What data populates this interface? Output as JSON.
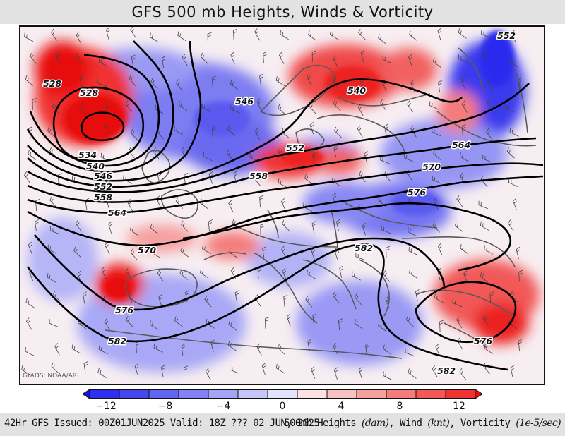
{
  "title": "GFS 500 mb Heights, Winds & Vorticity",
  "credit": "GrADS: NOAA/ARL",
  "colorbar": {
    "tick_labels": [
      "−12",
      "−8",
      "−4",
      "0",
      "4",
      "8",
      "12"
    ],
    "colors": [
      "#1414e0",
      "#2f2ff0",
      "#4646f0",
      "#6464f2",
      "#8282f4",
      "#a4a4f6",
      "#c6c6f8",
      "#e2e2fb",
      "#fbe2e2",
      "#f8c2c2",
      "#f6a0a0",
      "#f47c7c",
      "#f25858",
      "#f03434",
      "#e81010"
    ]
  },
  "contour_labels": [
    "528",
    "528",
    "534",
    "540",
    "546",
    "552",
    "558",
    "564",
    "570",
    "576",
    "582",
    "546",
    "552",
    "558",
    "540",
    "564",
    "570",
    "576",
    "582",
    "552",
    "576",
    "582"
  ],
  "footer": {
    "left": "42Hr GFS Issued: 00Z01JUN2025 Valid: 18Z ??? 02 JUN, 2025",
    "right_prefix": "500mb Heights ",
    "right_units1": "(dam)",
    "right_mid1": ", Wind ",
    "right_units2": "(knt)",
    "right_mid2": ", Vorticity ",
    "right_units3": "(1e-5/sec)"
  },
  "colors": {
    "positive_vorticity": "#e81010",
    "negative_vorticity": "#1414e0",
    "contour": "#000000",
    "coastline": "#555555"
  }
}
